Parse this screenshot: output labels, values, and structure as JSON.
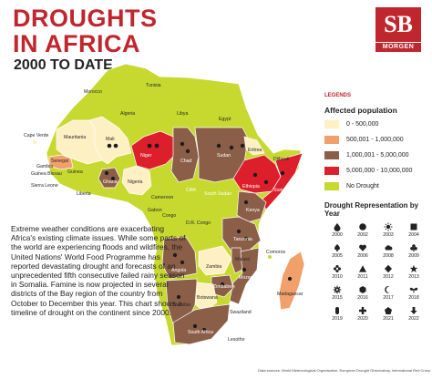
{
  "header": {
    "title_line1": "DROUGHTS",
    "title_line2": "IN AFRICA",
    "subtitle": "2000 TO DATE"
  },
  "logo": {
    "monogram": "SB",
    "wordmark": "MORGEN"
  },
  "colors": {
    "title": "#c0262d",
    "no_data": "#c7d82f",
    "c1": "#fdf0c2",
    "c2": "#f1a06b",
    "c3": "#8b5e48",
    "c4": "#dd1f2b",
    "land_other": "#c7d82f"
  },
  "map": {
    "labels": [
      {
        "key": "morocco",
        "text": "Morocco",
        "tone": "dark"
      },
      {
        "key": "tunisia",
        "text": "Tunisia",
        "tone": "dark"
      },
      {
        "key": "algeria",
        "text": "Algeria",
        "tone": "dark"
      },
      {
        "key": "libya",
        "text": "Libya",
        "tone": "dark"
      },
      {
        "key": "egypt",
        "text": "Egypt",
        "tone": "dark"
      },
      {
        "key": "mauritania",
        "text": "Mauritania",
        "tone": "dark"
      },
      {
        "key": "mali",
        "text": "Mali",
        "tone": "dark"
      },
      {
        "key": "niger",
        "text": "Niger",
        "tone": "light"
      },
      {
        "key": "chad",
        "text": "Chad",
        "tone": "light"
      },
      {
        "key": "sudan",
        "text": "Sudan",
        "tone": "light"
      },
      {
        "key": "eritrea",
        "text": "Eritrea",
        "tone": "dark"
      },
      {
        "key": "djibouti",
        "text": "Djibouti",
        "tone": "dark"
      },
      {
        "key": "cape_verde",
        "text": "Cape Verde",
        "tone": "dark"
      },
      {
        "key": "senegal",
        "text": "Senegal",
        "tone": "dark"
      },
      {
        "key": "gambia",
        "text": "Gambia",
        "tone": "dark"
      },
      {
        "key": "guinea_bissau",
        "text": "Guinea Bissau",
        "tone": "dark"
      },
      {
        "key": "guinea",
        "text": "Guinea",
        "tone": "dark"
      },
      {
        "key": "sierra_leone",
        "text": "Sierra Leone",
        "tone": "dark"
      },
      {
        "key": "liberia",
        "text": "Liberia",
        "tone": "dark"
      },
      {
        "key": "ghana",
        "text": "Ghana",
        "tone": "light"
      },
      {
        "key": "nigeria",
        "text": "Nigeria",
        "tone": "dark"
      },
      {
        "key": "ethiopia",
        "text": "Ethiopia",
        "tone": "light"
      },
      {
        "key": "somalia",
        "text": "Somalia",
        "tone": "light"
      },
      {
        "key": "cameroon",
        "text": "Cameroon",
        "tone": "dark"
      },
      {
        "key": "car",
        "text": "CAR",
        "tone": "light"
      },
      {
        "key": "south_sudan",
        "text": "South Sudan",
        "tone": "light"
      },
      {
        "key": "gabon",
        "text": "Gabon",
        "tone": "dark"
      },
      {
        "key": "congo",
        "text": "Congo",
        "tone": "dark"
      },
      {
        "key": "drc",
        "text": "D.R. Congo",
        "tone": "dark"
      },
      {
        "key": "kenya",
        "text": "Kenya",
        "tone": "light"
      },
      {
        "key": "tanzania",
        "text": "Tanzania",
        "tone": "light"
      },
      {
        "key": "angola",
        "text": "Angola",
        "tone": "light"
      },
      {
        "key": "zambia",
        "text": "Zambia",
        "tone": "dark"
      },
      {
        "key": "malawi",
        "text": "Malawi",
        "tone": "dark"
      },
      {
        "key": "mozambique",
        "text": "Mozambique",
        "tone": "light"
      },
      {
        "key": "zimbabwe",
        "text": "Zimbabwe",
        "tone": "light"
      },
      {
        "key": "namibia",
        "text": "Namibia",
        "tone": "dark"
      },
      {
        "key": "botswana",
        "text": "Botswana",
        "tone": "dark"
      },
      {
        "key": "south_africa",
        "text": "South Africa",
        "tone": "light"
      },
      {
        "key": "swaziland",
        "text": "Swaziland",
        "tone": "dark"
      },
      {
        "key": "lesotho",
        "text": "Lesotho",
        "tone": "dark"
      },
      {
        "key": "comoros",
        "text": "Comoros",
        "tone": "dark"
      },
      {
        "key": "madagascar",
        "text": "Madagascar",
        "tone": "dark"
      }
    ]
  },
  "body_text": "Extreme weather conditions are exacerbating Africa's existing climate issues. While some parts of the world are experiencing floods and wildfires, the United Nations' World Food Programme has reported devastating drought and forecasts of an unprecedented fifth consecutive failed rainy season in Somalia. Famine is now projected in several districts of the Bay region of the country from October to December this year. This chart shows a timeline of drought on the continent since 2000.",
  "legend": {
    "legends_label": "LEGENDS",
    "affected_title": "Affected population",
    "categories": [
      {
        "label": "0 - 500,000",
        "color": "#fdf0c2"
      },
      {
        "label": "500,001 - 1,000,000",
        "color": "#f1a06b"
      },
      {
        "label": "1,000,001 - 5,000,000",
        "color": "#8b5e48"
      },
      {
        "label": "5,000,000 - 10,000,000",
        "color": "#dd1f2b"
      },
      {
        "label": "No Drought",
        "color": "#c7d82f"
      }
    ],
    "representation_title": "Drought Representation by Year",
    "years": [
      {
        "year": "2000",
        "icon": "drop-icon"
      },
      {
        "year": "2002",
        "icon": "circle-icon"
      },
      {
        "year": "2003",
        "icon": "sun-burst-icon"
      },
      {
        "year": "2004",
        "icon": "square-icon"
      },
      {
        "year": "2005",
        "icon": "spade-icon"
      },
      {
        "year": "2006",
        "icon": "heart-icon"
      },
      {
        "year": "2008",
        "icon": "cloud-icon"
      },
      {
        "year": "2009",
        "icon": "club-icon"
      },
      {
        "year": "2010",
        "icon": "flower-icon"
      },
      {
        "year": "2011",
        "icon": "triangle-icon"
      },
      {
        "year": "2012",
        "icon": "diamond-icon"
      },
      {
        "year": "2013",
        "icon": "star-icon"
      },
      {
        "year": "2015",
        "icon": "gear-icon"
      },
      {
        "year": "2016",
        "icon": "hexagon-icon"
      },
      {
        "year": "2017",
        "icon": "crescent-icon"
      },
      {
        "year": "2018",
        "icon": "wings-icon"
      },
      {
        "year": "2019",
        "icon": "pill-icon"
      },
      {
        "year": "2020",
        "icon": "cross-icon"
      },
      {
        "year": "2021",
        "icon": "pentagon-icon"
      },
      {
        "year": "2022",
        "icon": "arrow-down-icon"
      }
    ]
  },
  "source": "Data sources: World Meteorological Organisation, European Drought Observatory, International Red Cross"
}
